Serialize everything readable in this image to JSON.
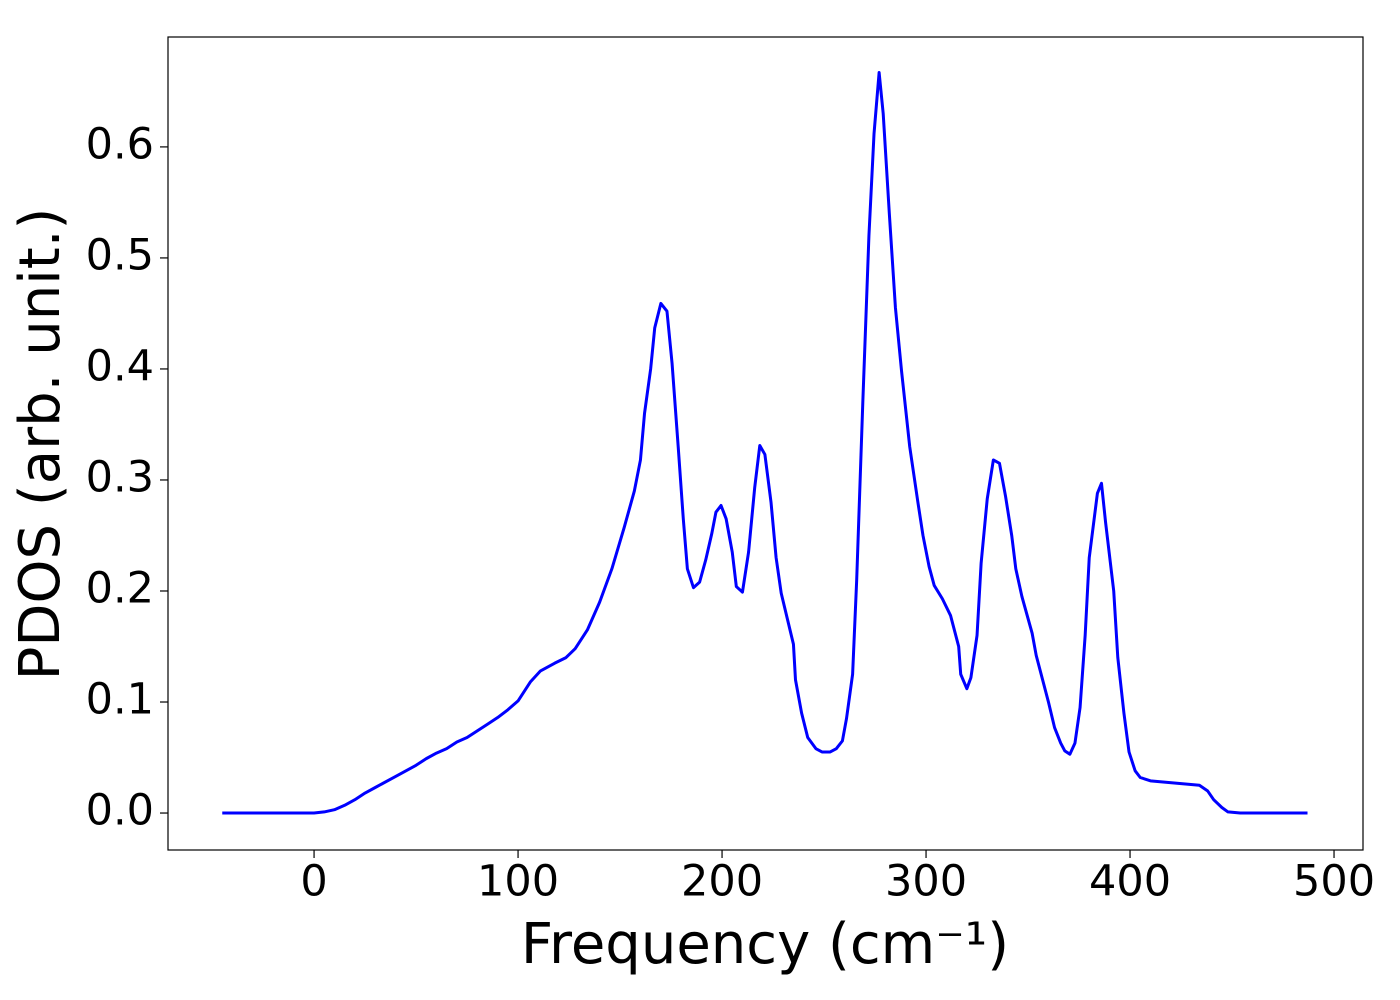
{
  "chart_data": {
    "type": "line",
    "x_label": "Frequency (cm⁻¹)",
    "y_label": "PDOS (arb. unit.)",
    "xlim": [
      -71.6,
      514.2
    ],
    "ylim": [
      -0.0333,
      0.699
    ],
    "xticks": [
      0,
      100,
      200,
      300,
      400,
      500
    ],
    "yticks": [
      {
        "value": 0,
        "label": "0.0"
      },
      0.1,
      0.2,
      0.3,
      0.4,
      0.5,
      0.6
    ],
    "grid": false,
    "series": [
      {
        "color": "#0000ff",
        "x": [
          -45,
          -20,
          0,
          5,
          10,
          15,
          20,
          25,
          30,
          40,
          50,
          55,
          60,
          65,
          70,
          75,
          80,
          85,
          90,
          95,
          100,
          106,
          111,
          118,
          123.5,
          128,
          134,
          140,
          146,
          152,
          157,
          160,
          162,
          165,
          167,
          170,
          173,
          175.5,
          178.5,
          181,
          183,
          186,
          189,
          192,
          195,
          197,
          199.5,
          202,
          205,
          207,
          210,
          213,
          216,
          218.5,
          221,
          224,
          226.5,
          229,
          232,
          235,
          236,
          239,
          242,
          246,
          249,
          253,
          256,
          259,
          261,
          264,
          266,
          269,
          272,
          274.5,
          277,
          279,
          282,
          285,
          288,
          292,
          296,
          298.5,
          301.5,
          304,
          308,
          312,
          316,
          317,
          320,
          322,
          325,
          327,
          330,
          333,
          336,
          339,
          342,
          344,
          347,
          352,
          354,
          360,
          363,
          366,
          368,
          370.5,
          373,
          375.5,
          378,
          380,
          384,
          386,
          388,
          392,
          394,
          397,
          399.5,
          402.5,
          405,
          410,
          434,
          438,
          441,
          445,
          448,
          454,
          487
        ],
        "values": [
          0,
          0,
          0,
          0.001,
          0.003,
          0.007,
          0.012,
          0.018,
          0.023,
          0.033,
          0.043,
          0.049,
          0.054,
          0.058,
          0.064,
          0.068,
          0.074,
          0.08,
          0.086,
          0.093,
          0.101,
          0.118,
          0.128,
          0.135,
          0.14,
          0.148,
          0.165,
          0.19,
          0.22,
          0.257,
          0.29,
          0.318,
          0.36,
          0.4,
          0.437,
          0.459,
          0.452,
          0.405,
          0.33,
          0.265,
          0.22,
          0.203,
          0.208,
          0.228,
          0.252,
          0.271,
          0.277,
          0.265,
          0.235,
          0.204,
          0.199,
          0.235,
          0.293,
          0.331,
          0.323,
          0.28,
          0.23,
          0.198,
          0.175,
          0.152,
          0.12,
          0.09,
          0.068,
          0.058,
          0.055,
          0.055,
          0.058,
          0.065,
          0.085,
          0.125,
          0.21,
          0.37,
          0.52,
          0.612,
          0.667,
          0.63,
          0.54,
          0.455,
          0.398,
          0.33,
          0.28,
          0.25,
          0.222,
          0.205,
          0.193,
          0.178,
          0.15,
          0.125,
          0.112,
          0.122,
          0.16,
          0.225,
          0.283,
          0.318,
          0.315,
          0.285,
          0.25,
          0.22,
          0.195,
          0.162,
          0.142,
          0.1,
          0.077,
          0.063,
          0.056,
          0.053,
          0.063,
          0.095,
          0.16,
          0.23,
          0.288,
          0.297,
          0.262,
          0.2,
          0.14,
          0.09,
          0.055,
          0.038,
          0.032,
          0.029,
          0.025,
          0.02,
          0.012,
          0.005,
          0.001,
          0,
          0
        ]
      }
    ]
  }
}
